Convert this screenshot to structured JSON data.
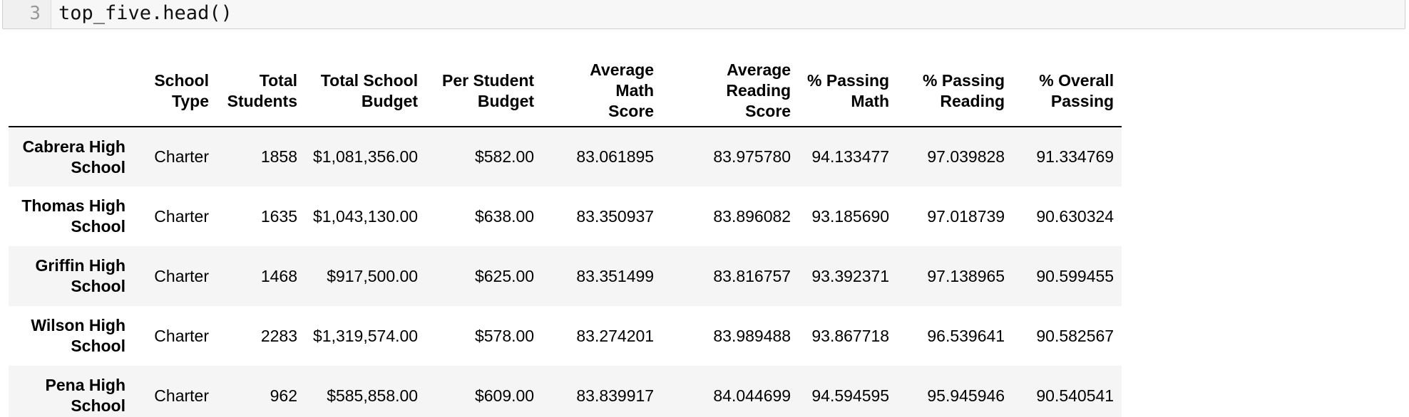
{
  "code_cell": {
    "line_number": "3",
    "code": "top_five.head()"
  },
  "dataframe": {
    "columns": [
      {
        "line1": "",
        "line2": ""
      },
      {
        "line1": "School",
        "line2": "Type"
      },
      {
        "line1": "Total",
        "line2": "Students"
      },
      {
        "line1": "Total School",
        "line2": "Budget"
      },
      {
        "line1": "Per Student",
        "line2": "Budget"
      },
      {
        "line1": "Average Math",
        "line2": "Score"
      },
      {
        "line1": "Average Reading",
        "line2": "Score"
      },
      {
        "line1": "% Passing",
        "line2": "Math"
      },
      {
        "line1": "% Passing",
        "line2": "Reading"
      },
      {
        "line1": "% Overall",
        "line2": "Passing"
      }
    ],
    "rows": [
      {
        "index1": "Cabrera High",
        "index2": "School",
        "cells": [
          "Charter",
          "1858",
          "$1,081,356.00",
          "$582.00",
          "83.061895",
          "83.975780",
          "94.133477",
          "97.039828",
          "91.334769"
        ]
      },
      {
        "index1": "Thomas High",
        "index2": "School",
        "cells": [
          "Charter",
          "1635",
          "$1,043,130.00",
          "$638.00",
          "83.350937",
          "83.896082",
          "93.185690",
          "97.018739",
          "90.630324"
        ]
      },
      {
        "index1": "Griffin High",
        "index2": "School",
        "cells": [
          "Charter",
          "1468",
          "$917,500.00",
          "$625.00",
          "83.351499",
          "83.816757",
          "93.392371",
          "97.138965",
          "90.599455"
        ]
      },
      {
        "index1": "Wilson High",
        "index2": "School",
        "cells": [
          "Charter",
          "2283",
          "$1,319,574.00",
          "$578.00",
          "83.274201",
          "83.989488",
          "93.867718",
          "96.539641",
          "90.582567"
        ]
      },
      {
        "index1": "Pena High",
        "index2": "School",
        "cells": [
          "Charter",
          "962",
          "$585,858.00",
          "$609.00",
          "83.839917",
          "84.044699",
          "94.594595",
          "95.945946",
          "90.540541"
        ]
      }
    ]
  }
}
